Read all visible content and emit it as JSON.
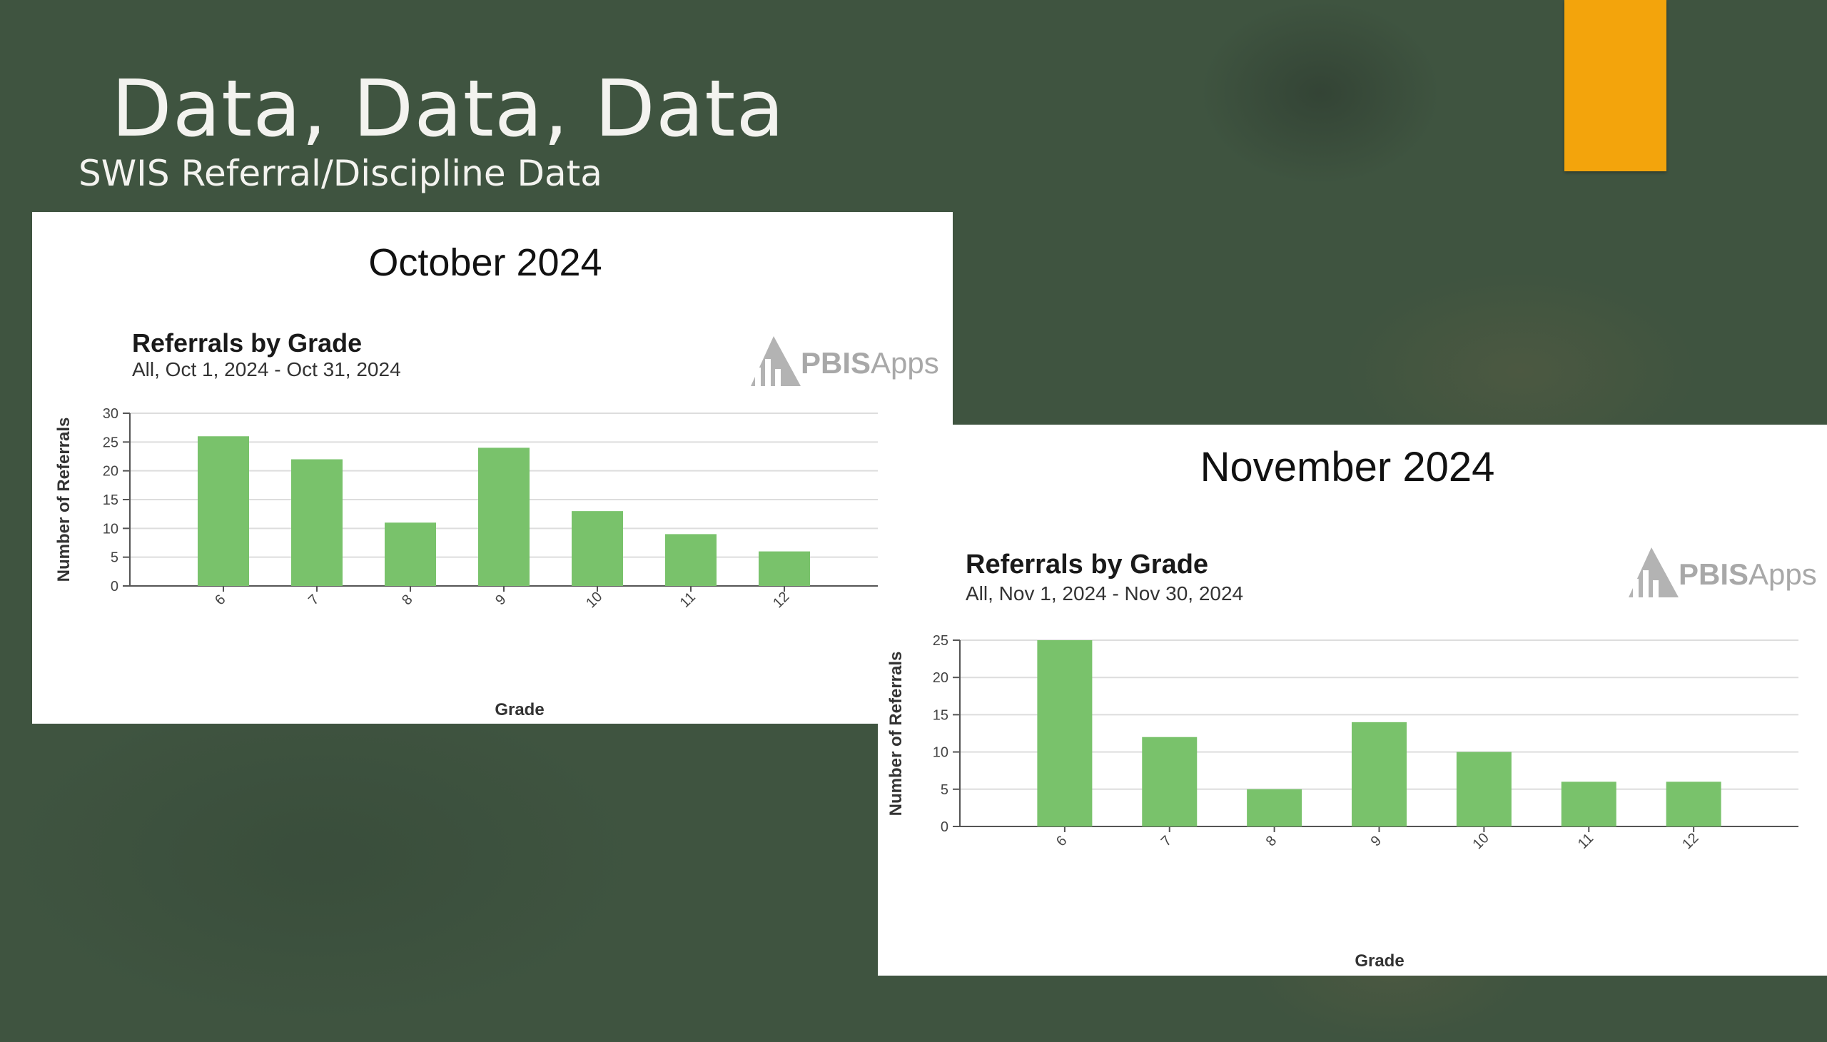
{
  "slide": {
    "title": "Data, Data, Data",
    "subtitle": "SWIS Referral/Discipline Data",
    "colors": {
      "background": "#3f5440",
      "accent": "#f3a40c",
      "bar": "#79c26b",
      "text": "#f3f3ef"
    }
  },
  "logo": {
    "bold": "PBIS",
    "light": "Apps",
    "icon": "pbis-apps-logo-icon"
  },
  "chart_data": [
    {
      "type": "bar",
      "heading": "October 2024",
      "title": "Referrals by Grade",
      "subtitle": "All, Oct 1, 2024 - Oct 31, 2024",
      "xlabel": "Grade",
      "ylabel": "Number of Referrals",
      "categories": [
        "6",
        "7",
        "8",
        "9",
        "10",
        "11",
        "12"
      ],
      "values": [
        26,
        22,
        11,
        24,
        13,
        9,
        6
      ],
      "ylim": [
        0,
        30
      ],
      "yticks": [
        0,
        5,
        10,
        15,
        20,
        25,
        30
      ],
      "grid": true,
      "bar_color": "#79c26b"
    },
    {
      "type": "bar",
      "heading": "November 2024",
      "title": "Referrals by Grade",
      "subtitle": "All, Nov 1, 2024 - Nov 30, 2024",
      "xlabel": "Grade",
      "ylabel": "Number of Referrals",
      "categories": [
        "6",
        "7",
        "8",
        "9",
        "10",
        "11",
        "12"
      ],
      "values": [
        25,
        12,
        5,
        14,
        10,
        6,
        6
      ],
      "ylim": [
        0,
        25
      ],
      "yticks": [
        0,
        5,
        10,
        15,
        20,
        25
      ],
      "grid": true,
      "bar_color": "#79c26b"
    }
  ]
}
